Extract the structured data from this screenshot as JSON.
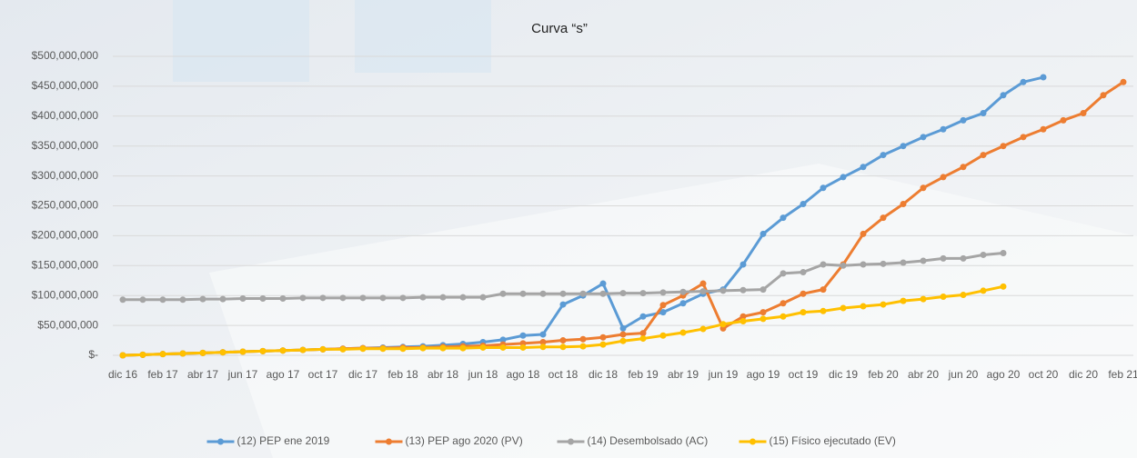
{
  "chart_data": {
    "type": "line",
    "title": "Curva “s”",
    "categories": [
      "dic 16",
      null,
      "feb 17",
      null,
      "abr 17",
      null,
      "jun 17",
      null,
      "ago 17",
      null,
      "oct 17",
      null,
      "dic 17",
      null,
      "feb 18",
      null,
      "abr 18",
      null,
      "jun 18",
      null,
      "ago 18",
      null,
      "oct 18",
      null,
      "dic 18",
      null,
      "feb 19",
      null,
      "abr 19",
      null,
      "jun 19",
      null,
      "ago 19",
      null,
      "oct 19",
      null,
      "dic 19",
      null,
      "feb 20",
      null,
      "abr 20",
      null,
      "jun 20",
      null,
      "ago 20",
      null,
      "oct 20",
      null,
      "dic 20",
      null,
      "feb 21"
    ],
    "series": [
      {
        "name": "(12) PEP ene 2019",
        "color": "#5b9bd5",
        "values": [
          0,
          1000000,
          2000000,
          3000000,
          4000000,
          5000000,
          6000000,
          7000000,
          8000000,
          9000000,
          10000000,
          11000000,
          12000000,
          13000000,
          14000000,
          15000000,
          17000000,
          19000000,
          22000000,
          26000000,
          33000000,
          35000000,
          85000000,
          100000000,
          120000000,
          45000000,
          65000000,
          72000000,
          87000000,
          103000000,
          110000000,
          152000000,
          203000000,
          230000000,
          253000000,
          280000000,
          298000000,
          315000000,
          335000000,
          350000000,
          365000000,
          378000000,
          393000000,
          405000000,
          435000000,
          457000000,
          465000000,
          null,
          null,
          null,
          null
        ]
      },
      {
        "name": "(13) PEP ago 2020 (PV)",
        "color": "#ed7d31",
        "values": [
          0,
          1000000,
          2000000,
          3000000,
          4000000,
          5000000,
          6000000,
          7000000,
          8000000,
          9000000,
          10000000,
          11000000,
          12000000,
          12000000,
          13000000,
          13000000,
          14000000,
          15000000,
          16000000,
          18000000,
          20000000,
          22000000,
          25000000,
          27000000,
          30000000,
          35000000,
          37000000,
          84000000,
          100000000,
          120000000,
          45000000,
          65000000,
          72000000,
          87000000,
          103000000,
          110000000,
          152000000,
          203000000,
          230000000,
          253000000,
          280000000,
          298000000,
          315000000,
          335000000,
          350000000,
          365000000,
          378000000,
          393000000,
          405000000,
          435000000,
          457000000
        ]
      },
      {
        "name": "(14) Desembolsado (AC)",
        "color": "#a5a5a5",
        "values": [
          93000000,
          93000000,
          93000000,
          93000000,
          94000000,
          94000000,
          95000000,
          95000000,
          95000000,
          96000000,
          96000000,
          96000000,
          96000000,
          96000000,
          96000000,
          97000000,
          97000000,
          97000000,
          97000000,
          103000000,
          103000000,
          103000000,
          103000000,
          103000000,
          103000000,
          104000000,
          104000000,
          105000000,
          106000000,
          107000000,
          108000000,
          109000000,
          110000000,
          137000000,
          139000000,
          152000000,
          150000000,
          152000000,
          153000000,
          155000000,
          158000000,
          162000000,
          162000000,
          168000000,
          171000000,
          null,
          null,
          null,
          null,
          null,
          null
        ]
      },
      {
        "name": "(15) Físico ejecutado (EV)",
        "color": "#ffc000",
        "values": [
          0,
          1000000,
          2000000,
          3000000,
          4000000,
          5000000,
          6000000,
          7000000,
          8000000,
          9000000,
          10000000,
          10000000,
          11000000,
          11000000,
          11000000,
          12000000,
          12000000,
          12000000,
          13000000,
          13000000,
          13000000,
          14000000,
          14000000,
          15000000,
          18000000,
          24000000,
          28000000,
          33000000,
          38000000,
          44000000,
          52000000,
          57000000,
          61000000,
          65000000,
          72000000,
          74000000,
          79000000,
          82000000,
          85000000,
          91000000,
          94000000,
          98000000,
          101000000,
          108000000,
          115000000,
          null,
          null,
          null,
          null,
          null,
          null
        ]
      }
    ],
    "ylim": [
      0,
      500000000
    ],
    "yticks": [
      {
        "value": 0,
        "label": "$-"
      },
      {
        "value": 50000000,
        "label": "$50,000,000"
      },
      {
        "value": 100000000,
        "label": "$100,000,000"
      },
      {
        "value": 150000000,
        "label": "$150,000,000"
      },
      {
        "value": 200000000,
        "label": "$200,000,000"
      },
      {
        "value": 250000000,
        "label": "$250,000,000"
      },
      {
        "value": 300000000,
        "label": "$300,000,000"
      },
      {
        "value": 350000000,
        "label": "$350,000,000"
      },
      {
        "value": 400000000,
        "label": "$400,000,000"
      },
      {
        "value": 450000000,
        "label": "$450,000,000"
      },
      {
        "value": 500000000,
        "label": "$500,000,000"
      }
    ],
    "grid": true,
    "legend": "bottom"
  }
}
